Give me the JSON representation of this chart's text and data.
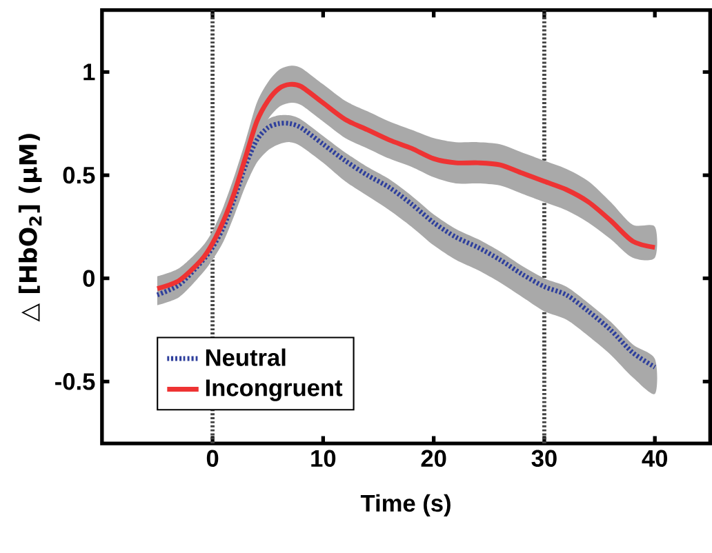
{
  "chart_data": {
    "type": "line",
    "xlabel": "Time (s)",
    "ylabel": "△ [HbO$_{2}$] (μM)",
    "x": [
      -5,
      -3,
      -1,
      0,
      1,
      2,
      3,
      4,
      5,
      6,
      7,
      8,
      10,
      12,
      14,
      16,
      18,
      20,
      22,
      24,
      26,
      28,
      30,
      32,
      34,
      36,
      38,
      40
    ],
    "series": [
      {
        "name": "Neutral",
        "color": "#2e3f9c",
        "line_style": "dotted",
        "values": [
          -0.08,
          -0.03,
          0.08,
          0.15,
          0.25,
          0.39,
          0.55,
          0.67,
          0.73,
          0.75,
          0.75,
          0.73,
          0.65,
          0.57,
          0.5,
          0.44,
          0.36,
          0.27,
          0.2,
          0.15,
          0.09,
          0.02,
          -0.04,
          -0.08,
          -0.16,
          -0.25,
          -0.36,
          -0.43
        ],
        "upper": [
          -0.04,
          0.01,
          0.12,
          0.19,
          0.29,
          0.43,
          0.59,
          0.71,
          0.77,
          0.79,
          0.79,
          0.77,
          0.69,
          0.61,
          0.54,
          0.48,
          0.4,
          0.31,
          0.24,
          0.19,
          0.13,
          0.06,
          0.0,
          -0.04,
          -0.12,
          -0.21,
          -0.32,
          -0.39
        ],
        "lower": [
          -0.13,
          -0.09,
          0.02,
          0.09,
          0.18,
          0.31,
          0.45,
          0.56,
          0.62,
          0.65,
          0.66,
          0.64,
          0.56,
          0.47,
          0.4,
          0.33,
          0.25,
          0.16,
          0.09,
          0.04,
          -0.02,
          -0.09,
          -0.16,
          -0.2,
          -0.28,
          -0.37,
          -0.48,
          -0.56
        ]
      },
      {
        "name": "Incongruent",
        "color": "#ee3333",
        "line_style": "solid",
        "values": [
          -0.05,
          -0.01,
          0.09,
          0.17,
          0.28,
          0.42,
          0.59,
          0.76,
          0.86,
          0.92,
          0.94,
          0.93,
          0.85,
          0.77,
          0.72,
          0.67,
          0.63,
          0.58,
          0.56,
          0.56,
          0.55,
          0.51,
          0.47,
          0.43,
          0.37,
          0.28,
          0.18,
          0.15
        ],
        "upper": [
          0.01,
          0.05,
          0.15,
          0.23,
          0.35,
          0.5,
          0.67,
          0.85,
          0.95,
          1.01,
          1.03,
          1.02,
          0.94,
          0.86,
          0.81,
          0.76,
          0.72,
          0.68,
          0.66,
          0.66,
          0.65,
          0.61,
          0.57,
          0.53,
          0.47,
          0.37,
          0.26,
          0.25
        ],
        "lower": [
          -0.1,
          -0.06,
          0.03,
          0.11,
          0.21,
          0.34,
          0.51,
          0.67,
          0.77,
          0.83,
          0.85,
          0.84,
          0.76,
          0.68,
          0.63,
          0.58,
          0.54,
          0.49,
          0.46,
          0.46,
          0.45,
          0.41,
          0.37,
          0.33,
          0.27,
          0.19,
          0.1,
          0.1
        ]
      }
    ],
    "xlim": [
      -10,
      45
    ],
    "ylim": [
      -0.8,
      1.3
    ],
    "xticks": [
      0,
      10,
      20,
      30,
      40
    ],
    "yticks": [
      -0.5,
      0,
      0.5,
      1
    ],
    "ref_lines": [
      {
        "axis": "x",
        "value": 0,
        "color": "#444444",
        "line_style": "dotted"
      },
      {
        "axis": "x",
        "value": 30,
        "color": "#444444",
        "line_style": "dotted"
      }
    ],
    "legend": "bottom left",
    "grid": false,
    "marker": "none"
  }
}
